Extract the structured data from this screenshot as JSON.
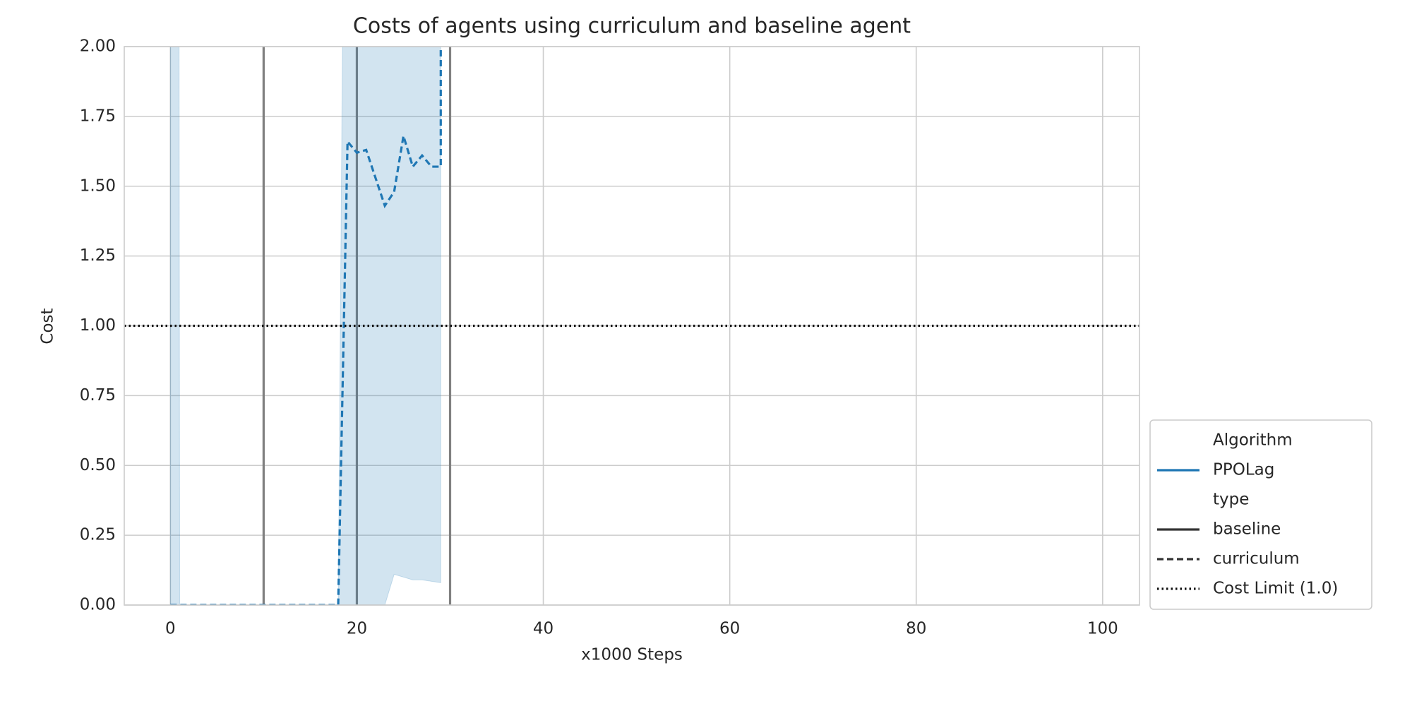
{
  "chart_data": {
    "type": "line",
    "title": "Costs of agents using curriculum and baseline agent",
    "xlabel": "x1000 Steps",
    "ylabel": "Cost",
    "xlim": [
      -4.95,
      103.95
    ],
    "ylim": [
      0,
      2
    ],
    "xticks": [
      0,
      20,
      40,
      60,
      80,
      100
    ],
    "yticks": [
      {
        "value": 0,
        "label": "0.00"
      },
      0.25,
      {
        "value": 0.5,
        "label": "0.50"
      },
      0.75,
      {
        "value": 1,
        "label": "1.00"
      },
      1.25,
      {
        "value": 1.5,
        "label": "1.50"
      },
      1.75,
      {
        "value": 2,
        "label": "2.00"
      }
    ],
    "grid": true,
    "series": [
      {
        "color": "#1f77b4",
        "dash": "dashed",
        "x": [
          0,
          1,
          2,
          3,
          4,
          5,
          6,
          7,
          8,
          9,
          10,
          11,
          12,
          13,
          14,
          15,
          16,
          17,
          18,
          19,
          20,
          21,
          22,
          23,
          24,
          25,
          26,
          27,
          28,
          29,
          29
        ],
        "values": [
          0,
          0,
          0,
          0,
          0,
          0,
          0,
          0,
          0,
          0,
          0,
          0,
          0,
          0,
          0,
          0,
          0,
          0,
          0,
          1.66,
          1.62,
          1.63,
          1.53,
          1.43,
          1.48,
          1.68,
          1.57,
          1.61,
          1.57,
          1.57,
          2.6
        ],
        "ci_lower": [
          0,
          0,
          0,
          0,
          0,
          0,
          0,
          0,
          0,
          0,
          0,
          0,
          0,
          0,
          0,
          0,
          0,
          0,
          0,
          0,
          0,
          0,
          0,
          0,
          0.11,
          0.1,
          0.09,
          0.09,
          0.085,
          0.08,
          0.08
        ],
        "ci_upper": [
          30,
          0,
          0,
          0,
          0,
          0,
          0,
          0,
          0,
          0,
          0,
          0,
          0,
          0,
          0,
          0,
          0,
          0,
          0,
          4.4,
          4.4,
          4.4,
          4.4,
          4.4,
          4.4,
          4.4,
          4.4,
          4.4,
          4.4,
          4.4,
          4.4
        ]
      }
    ],
    "vlines": [
      10,
      20,
      30
    ],
    "vline_color": "#808080",
    "hlines": [
      {
        "value": 1,
        "color": "#111111"
      }
    ],
    "legend": {
      "position": "outside right bottom",
      "entries": [
        {
          "label": "Algorithm"
        },
        {
          "label": "PPOLag",
          "color": "#1f77b4",
          "style": "solid"
        },
        {
          "label": "type"
        },
        {
          "label": "baseline",
          "color": "#333333",
          "style": "solid"
        },
        {
          "label": "curriculum",
          "color": "#333333",
          "style": "dashed"
        },
        {
          "label": "Cost Limit (1.0)",
          "color": "#111111",
          "style": "dotted"
        }
      ]
    }
  }
}
